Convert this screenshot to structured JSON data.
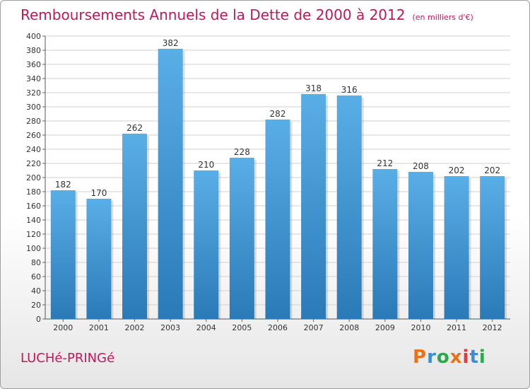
{
  "header": {
    "title": "Remboursements Annuels de la Dette de 2000 à 2012",
    "subtitle": "(en milliers d'€)"
  },
  "footer": {
    "town": "LUCHé-PRINGé",
    "logo": "Proxiti"
  },
  "colors": {
    "title": "#c2185b",
    "bar_top": "#5aaee6",
    "bar_bottom": "#2a7ab8",
    "logo_letters": [
      "#e8731a",
      "#3a8fd0",
      "#2aa84a",
      "#e8731a",
      "#e03a3a",
      "#3a8fd0",
      "#2aa84a"
    ]
  },
  "chart_data": {
    "type": "bar",
    "title": "Remboursements Annuels de la Dette de 2000 à 2012",
    "subtitle": "(en milliers d'€)",
    "xlabel": "",
    "ylabel": "",
    "categories": [
      "2000",
      "2001",
      "2002",
      "2003",
      "2004",
      "2005",
      "2006",
      "2007",
      "2008",
      "2009",
      "2010",
      "2011",
      "2012"
    ],
    "values": [
      182,
      170,
      262,
      382,
      210,
      228,
      282,
      318,
      316,
      212,
      208,
      202,
      202
    ],
    "ylim": [
      0,
      400
    ],
    "ytick_step": 20,
    "grid": true,
    "data_labels": true
  }
}
